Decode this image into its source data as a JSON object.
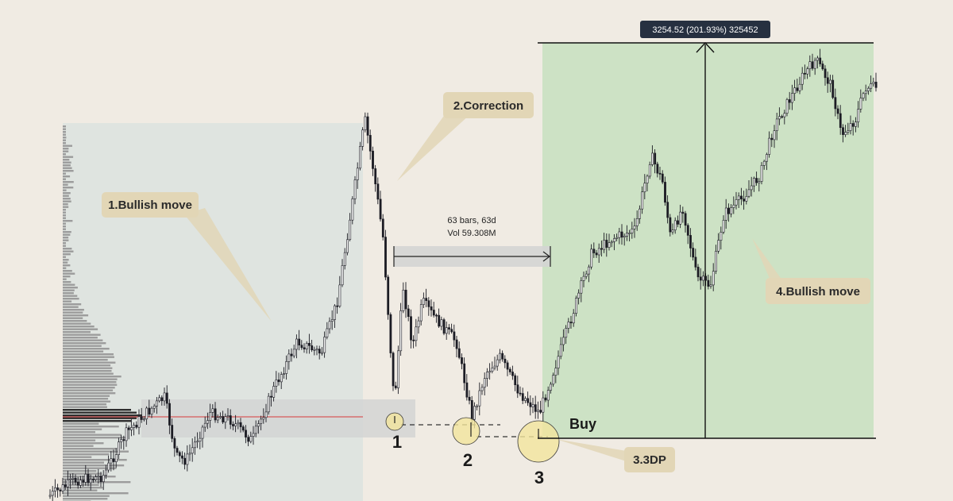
{
  "chart_data": {
    "type": "candlestick",
    "annotations": {
      "bullish_move_1": "1.Bullish move",
      "correction": "2.Correction",
      "tdp": "3.3DP",
      "bullish_move_4": "4.Bullish move",
      "buy": "Buy",
      "point_1": "1",
      "point_2": "2",
      "point_3": "3",
      "range_bars": "63 bars, 63d",
      "range_vol": "Vol 59.308M",
      "measure_tooltip": "3254.52 (201.93%) 325452"
    },
    "colors": {
      "background": "#f0ebe3",
      "left_zone": "#dfe4e0",
      "target_zone": "#cde2c5",
      "candle": "#1c1c24",
      "label_fill": "#e2d6b6",
      "circle_fill": "#f2e59c",
      "poc_line": "#d65a5a",
      "tooltip_bg": "#263040"
    }
  }
}
